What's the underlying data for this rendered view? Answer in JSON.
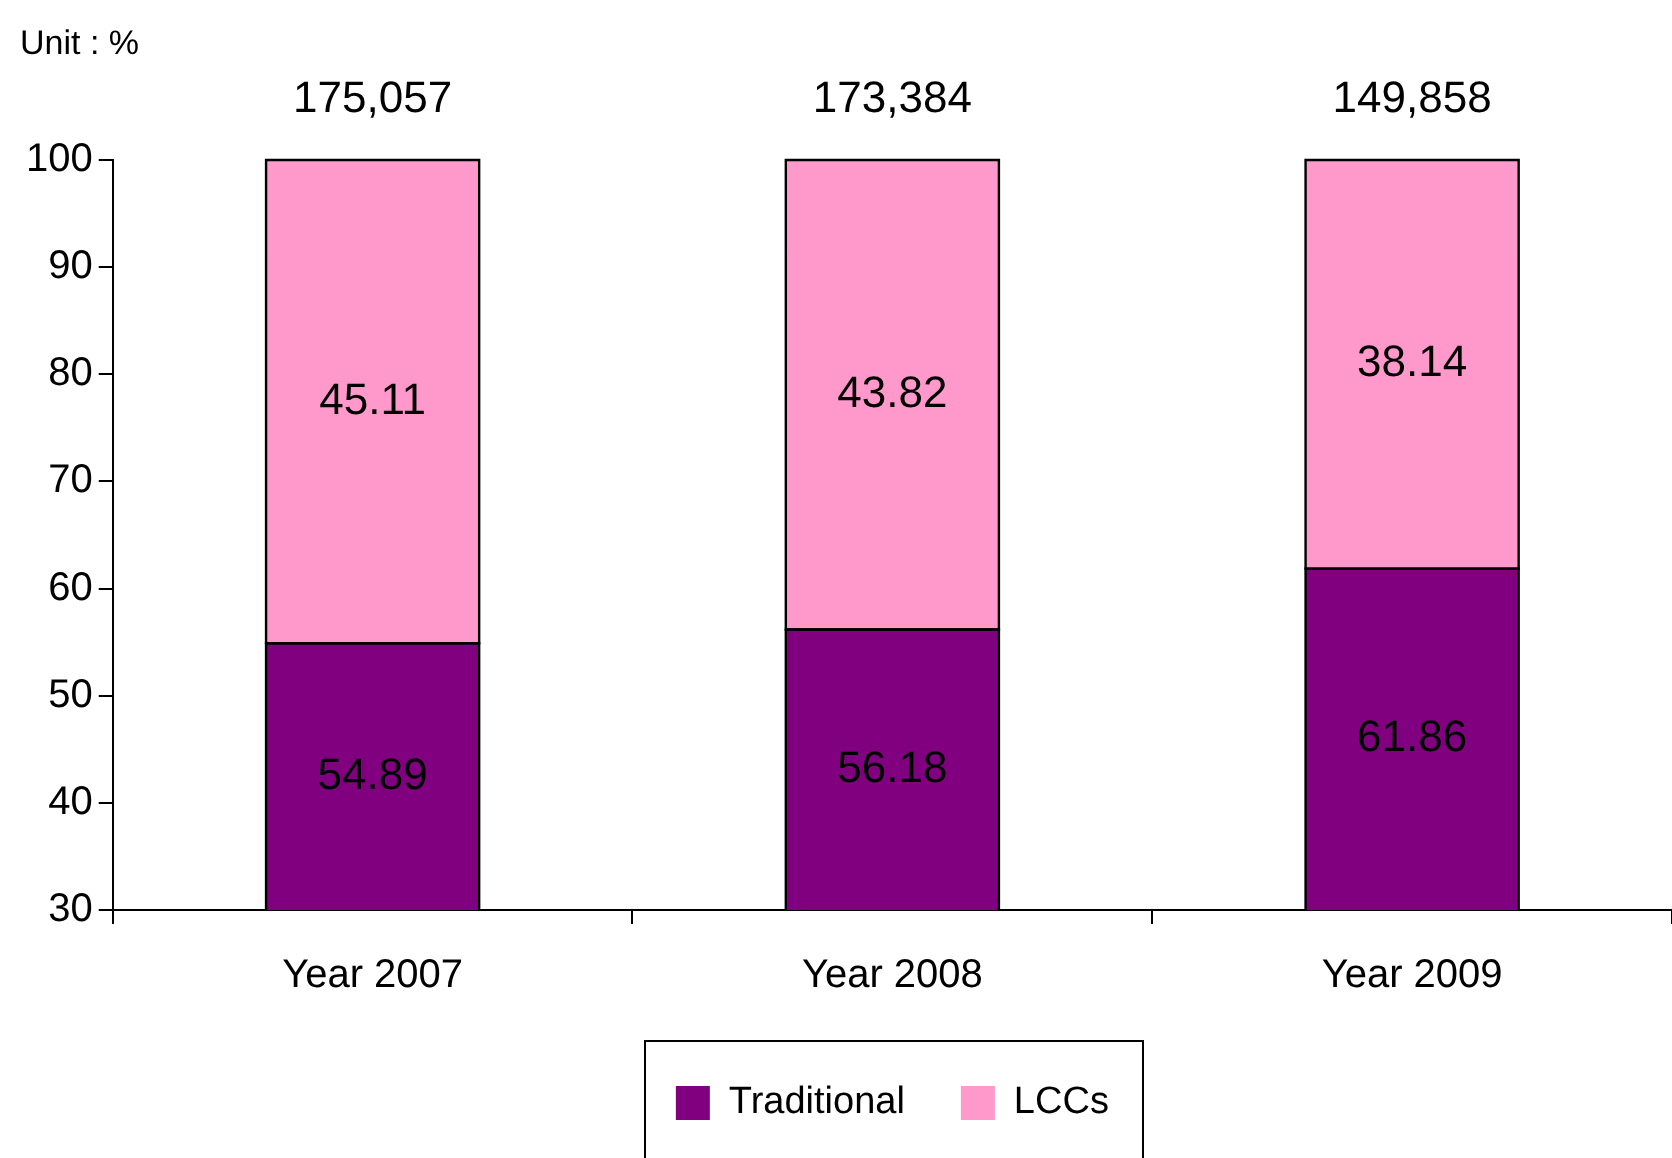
{
  "chart_data": {
    "type": "bar",
    "stacked": true,
    "categories": [
      "Year 2007",
      "Year 2008",
      "Year 2009"
    ],
    "series": [
      {
        "name": "Traditional",
        "color": "#800080",
        "values": [
          54.89,
          56.18,
          61.86
        ]
      },
      {
        "name": "LCCs",
        "color": "#ff99cc",
        "values": [
          45.11,
          43.82,
          38.14
        ]
      }
    ],
    "ylim": [
      30,
      100
    ],
    "yticks": [
      30,
      40,
      50,
      60,
      70,
      80,
      90,
      100
    ],
    "grid": false,
    "legend": "bottom",
    "data_labels": true,
    "annotations": [
      "Unit : %",
      "175,057",
      "173,384",
      "149,858"
    ]
  }
}
